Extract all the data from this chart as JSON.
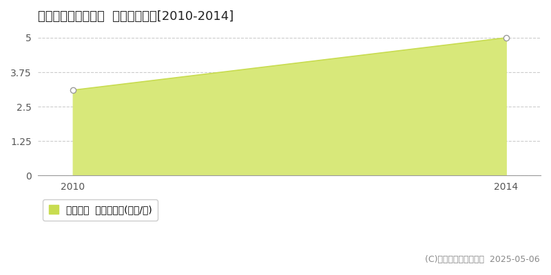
{
  "title": "多気郡多気町四疋田  土地価格推移[2010-2014]",
  "x_values": [
    2010,
    2014
  ],
  "y_values": [
    3.1,
    5.0
  ],
  "ylim": [
    0,
    5.3
  ],
  "xlim": [
    2009.68,
    2014.32
  ],
  "yticks": [
    0,
    1.25,
    2.5,
    3.75,
    5
  ],
  "ytick_labels": [
    "0",
    "1.25",
    "2.5",
    "3.75",
    "5"
  ],
  "xticks": [
    2010,
    2014
  ],
  "line_color": "#c8dc50",
  "fill_color": "#d8e87a",
  "marker_color": "#ffffff",
  "marker_edge_color": "#999999",
  "grid_color": "#cccccc",
  "background_color": "#ffffff",
  "plot_bg_color": "#f8f8f8",
  "legend_label": "土地価格  平均坪単価(万円/坪)",
  "legend_square_color": "#c8dc50",
  "copyright_text": "(C)土地価格ドットコム  2025-05-06",
  "title_fontsize": 13,
  "axis_fontsize": 10,
  "legend_fontsize": 10,
  "copyright_fontsize": 9
}
